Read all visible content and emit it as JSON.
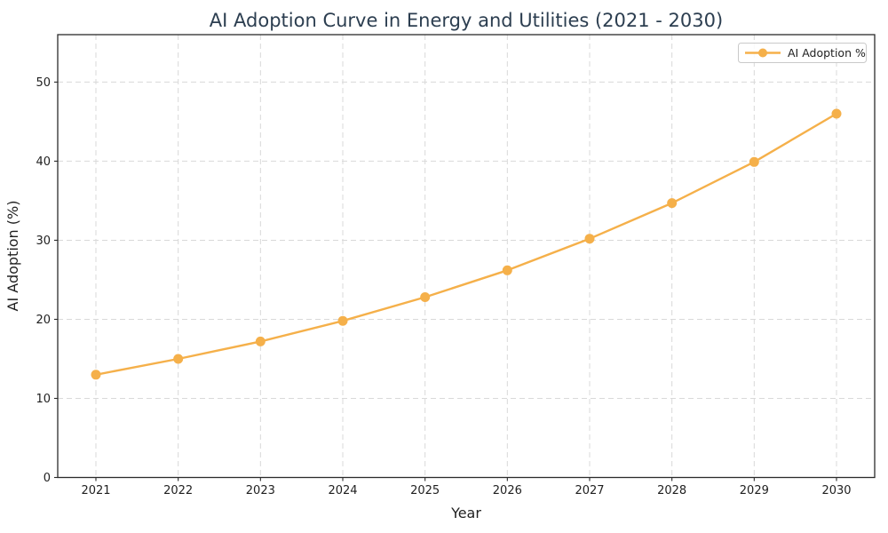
{
  "chart_data": {
    "type": "line",
    "title": "AI Adoption Curve in Energy and Utilities (2021 - 2030)",
    "xlabel": "Year",
    "ylabel": "AI Adoption (%)",
    "x": [
      "2021",
      "2022",
      "2023",
      "2024",
      "2025",
      "2026",
      "2027",
      "2028",
      "2029",
      "2030"
    ],
    "series": [
      {
        "name": "AI Adoption %",
        "values": [
          13.0,
          15.0,
          17.2,
          19.8,
          22.8,
          26.2,
          30.2,
          34.7,
          39.9,
          46.0
        ]
      }
    ],
    "ylim": [
      0,
      56
    ],
    "yticks": [
      0,
      10,
      20,
      30,
      40,
      50
    ],
    "grid": true,
    "grid_style": "dashed",
    "marker": "circle",
    "legend": {
      "label": "AI Adoption %",
      "position": "upper right"
    }
  },
  "colors": {
    "line": "#F5B04A",
    "marker": "#F5B04A",
    "grid": "#D9D9D9",
    "spine": "#2B2B2B",
    "title": "#2C3E50",
    "tick_text": "#1F1F1F",
    "axis_label_text": "#1F1F1F",
    "legend_text": "#1F1F1F",
    "legend_border": "#C9C9C9",
    "background": "#FFFFFF"
  }
}
